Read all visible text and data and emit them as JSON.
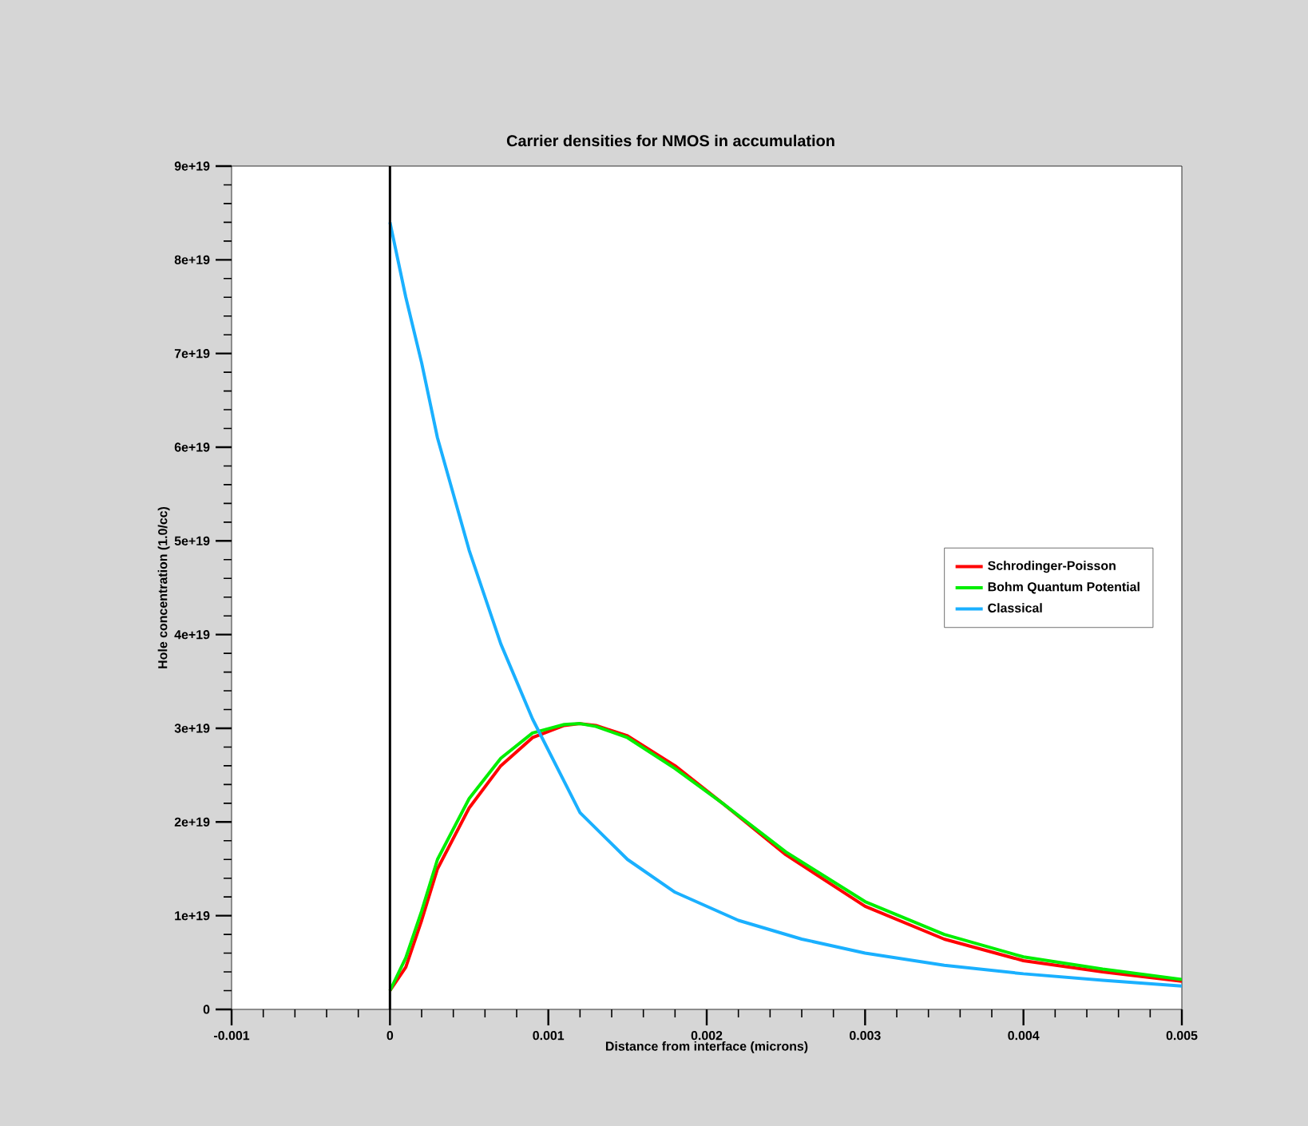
{
  "chart_data": {
    "type": "line",
    "title": "Carrier densities for NMOS in accumulation",
    "xlabel": "Distance from interface (microns)",
    "ylabel": "Hole concentration (1.0/cc)",
    "xlim": [
      -0.001,
      0.005
    ],
    "xticks": [
      -0.001,
      0,
      0.001,
      0.002,
      0.003,
      0.004,
      0.005
    ],
    "ylim": [
      0,
      9e+19
    ],
    "yticks": [
      0,
      {
        "value": 1e+19,
        "label": "1e+19"
      },
      {
        "value": 2e+19,
        "label": "2e+19"
      },
      {
        "value": 3e+19,
        "label": "3e+19"
      },
      {
        "value": 4e+19,
        "label": "4e+19"
      },
      {
        "value": 5e+19,
        "label": "5e+19"
      },
      {
        "value": 6e+19,
        "label": "6e+19"
      },
      {
        "value": 7e+19,
        "label": "7e+19"
      },
      {
        "value": 8e+19,
        "label": "8e+19"
      },
      {
        "value": 9e+19,
        "label": "9e+19"
      }
    ],
    "grid": false,
    "legend": "right",
    "ref_lines": [
      {
        "axis": "x",
        "value": 0,
        "color": "#000000"
      }
    ],
    "series": [
      {
        "name": "Schrodinger-Poisson",
        "color": "#ff0000",
        "x": [
          0,
          0.0001,
          0.0002,
          0.0003,
          0.0005,
          0.0007,
          0.0009,
          0.0011,
          0.0012,
          0.0013,
          0.0015,
          0.0018,
          0.0021,
          0.0025,
          0.003,
          0.0035,
          0.004,
          0.0045,
          0.005
        ],
        "values": [
          2e+18,
          4.5e+18,
          9.5e+18,
          1.5e+19,
          2.15e+19,
          2.6e+19,
          2.9e+19,
          3.03e+19,
          3.05e+19,
          3.03e+19,
          2.92e+19,
          2.6e+19,
          2.2e+19,
          1.65e+19,
          1.1e+19,
          7.5e+18,
          5.2e+18,
          4e+18,
          3e+18
        ]
      },
      {
        "name": "Bohm Quantum Potential",
        "color": "#00ee00",
        "x": [
          0,
          0.0001,
          0.0002,
          0.0003,
          0.0005,
          0.0007,
          0.0009,
          0.0011,
          0.0012,
          0.0013,
          0.0015,
          0.0018,
          0.0021,
          0.0025,
          0.003,
          0.0035,
          0.004,
          0.0045,
          0.005
        ],
        "values": [
          2e+18,
          5.5e+18,
          1.05e+19,
          1.6e+19,
          2.25e+19,
          2.68e+19,
          2.95e+19,
          3.04e+19,
          3.05e+19,
          3.02e+19,
          2.9e+19,
          2.57e+19,
          2.2e+19,
          1.68e+19,
          1.15e+19,
          8e+18,
          5.6e+18,
          4.3e+18,
          3.2e+18
        ]
      },
      {
        "name": "Classical",
        "color": "#1ab0ff",
        "x": [
          0,
          0.0001,
          0.0002,
          0.0003,
          0.0005,
          0.0007,
          0.0009,
          0.0012,
          0.0015,
          0.0018,
          0.0022,
          0.0026,
          0.003,
          0.0035,
          0.004,
          0.0045,
          0.005
        ],
        "values": [
          8.4e+19,
          7.6e+19,
          6.9e+19,
          6.1e+19,
          4.9e+19,
          3.9e+19,
          3.1e+19,
          2.1e+19,
          1.6e+19,
          1.25e+19,
          9.5e+18,
          7.5e+18,
          6e+18,
          4.7e+18,
          3.8e+18,
          3.1e+18,
          2.5e+18
        ]
      }
    ]
  }
}
